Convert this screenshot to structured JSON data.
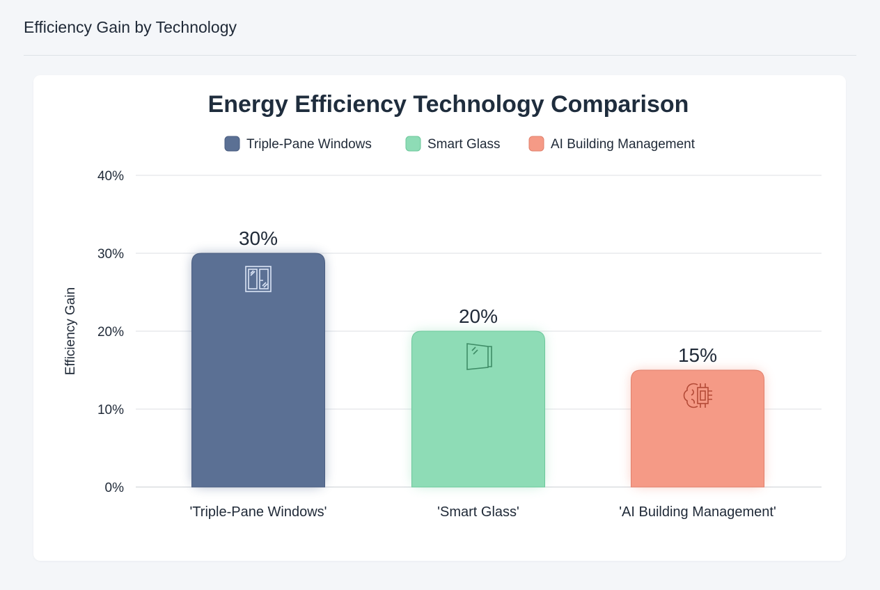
{
  "header": {
    "title": "Efficiency Gain by Technology"
  },
  "chart_data": {
    "type": "bar",
    "title": "Energy Efficiency Technology Comparison",
    "categories": [
      "'Triple-Pane Windows'",
      "'Smart Glass'",
      "'AI Building Management'"
    ],
    "values": [
      30,
      20,
      15
    ],
    "data_labels": [
      "30%",
      "20%",
      "15%"
    ],
    "legend": [
      {
        "label": "Triple-Pane Windows",
        "color": "#5b7094"
      },
      {
        "label": "Smart Glass",
        "color": "#8edcb6"
      },
      {
        "label": "AI Building Management",
        "color": "#f59a86"
      }
    ],
    "legend_placement": "top",
    "icons": [
      "window-icon",
      "glass-door-icon",
      "brain-chip-icon"
    ],
    "xlabel": "",
    "ylabel": "Efficiency Gain",
    "ylim": [
      0,
      40
    ],
    "yticks": [
      0,
      10,
      20,
      30,
      40
    ],
    "ytick_labels": [
      "0%",
      "10%",
      "20%",
      "30%",
      "40%"
    ],
    "grid": true
  }
}
